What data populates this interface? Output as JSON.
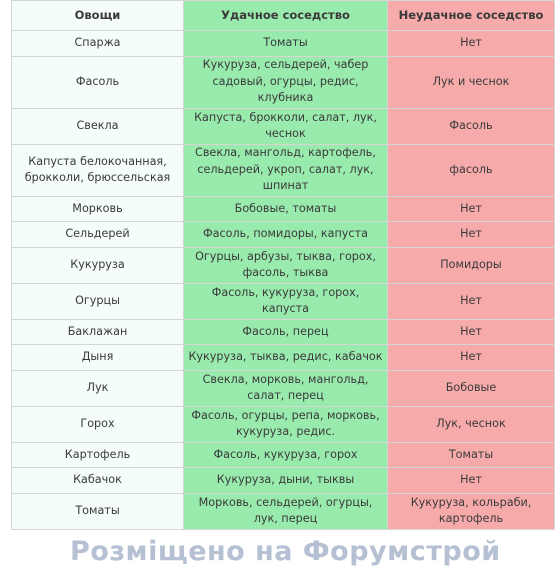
{
  "table": {
    "headers": {
      "vegetable": "Овощи",
      "good": "Удачное соседство",
      "bad": "Неудачное соседство"
    },
    "rows": [
      {
        "veg": "Спаржа",
        "good": "Томаты",
        "bad": "Нет"
      },
      {
        "veg": "Фасоль",
        "good": "Кукуруза, сельдерей, чабер садовый, огурцы, редис, клубника",
        "bad": "Лук и чеснок"
      },
      {
        "veg": "Свекла",
        "good": "Капуста, брокколи, салат, лук, чеснок",
        "bad": "Фасоль"
      },
      {
        "veg": "Капуста белокочанная, брокколи, брюссельская",
        "good": "Свекла, мангольд, картофель, сельдерей, укроп, салат, лук, шпинат",
        "bad": "фасоль"
      },
      {
        "veg": "Морковь",
        "good": "Бобовые, томаты",
        "bad": "Нет"
      },
      {
        "veg": "Сельдерей",
        "good": "Фасоль, помидоры, капуста",
        "bad": "Нет"
      },
      {
        "veg": "Кукуруза",
        "good": "Огурцы, арбузы, тыква, горох, фасоль, тыква",
        "bad": "Помидоры"
      },
      {
        "veg": "Огурцы",
        "good": "Фасоль, кукуруза, горох, капуста",
        "bad": "Нет"
      },
      {
        "veg": "Баклажан",
        "good": "Фасоль, перец",
        "bad": "Нет"
      },
      {
        "veg": "Дыня",
        "good": "Кукуруза, тыква, редис, кабачок",
        "bad": "Нет"
      },
      {
        "veg": "Лук",
        "good": "Свекла, морковь, мангольд, салат, перец",
        "bad": "Бобовые"
      },
      {
        "veg": "Горох",
        "good": "Фасоль, огурцы, репа, морковь, кукуруза, редис.",
        "bad": "Лук, чеснок"
      },
      {
        "veg": "Картофель",
        "good": "Фасоль, кукуруза, горох",
        "bad": "Томаты"
      },
      {
        "veg": "Кабачок",
        "good": "Кукуруза, дыни, тыквы",
        "bad": "Нет"
      },
      {
        "veg": "Томаты",
        "good": "Морковь, сельдерей, огурцы, лук, перец",
        "bad": "Кукуруза, кольраби, картофель"
      }
    ]
  },
  "watermark": "Розміщено на Форумстрой",
  "colors": {
    "good_column": "#99eaad",
    "bad_column": "#f6aaaa",
    "veg_column": "#f5fcfc"
  }
}
